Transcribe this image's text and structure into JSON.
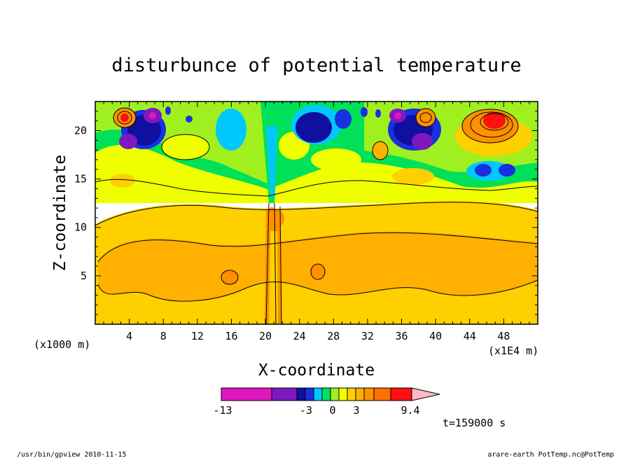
{
  "chart_data": {
    "type": "heatmap",
    "title": "disturbunce of potential temperature",
    "xlabel": "X-coordinate",
    "ylabel": "Z-coordinate",
    "x_unit_left": "(x1000 m)",
    "x_unit_right": "(x1E4 m)",
    "x_ticks": [
      4,
      8,
      12,
      16,
      20,
      24,
      28,
      32,
      36,
      40,
      44,
      48
    ],
    "y_ticks": [
      5,
      10,
      15,
      20
    ],
    "xlim": [
      0,
      52
    ],
    "ylim": [
      0,
      23
    ],
    "colorbar": {
      "labels": [
        "-13",
        "-3",
        "0",
        "3",
        "9.4"
      ],
      "colors": [
        "#dd18bf",
        "#8018c0",
        "#1010a0",
        "#1830e0",
        "#00c8ff",
        "#00e058",
        "#a0f020",
        "#f0ff00",
        "#ffd000",
        "#ffb000",
        "#ff9000",
        "#ff7000",
        "#ff1010",
        "#ff7878",
        "#ffb8c8"
      ]
    },
    "annotations": {
      "time": "t=159000 s",
      "footer_left": "/usr/bin/gpview   2010-11-15",
      "footer_right": "arare-earth_PotTemp.nc@PotTemp"
    },
    "field_description": "warm disturbance band below z=12, strong cold and warm cells near z=15-23, vertical mixed column near x=20-21"
  }
}
